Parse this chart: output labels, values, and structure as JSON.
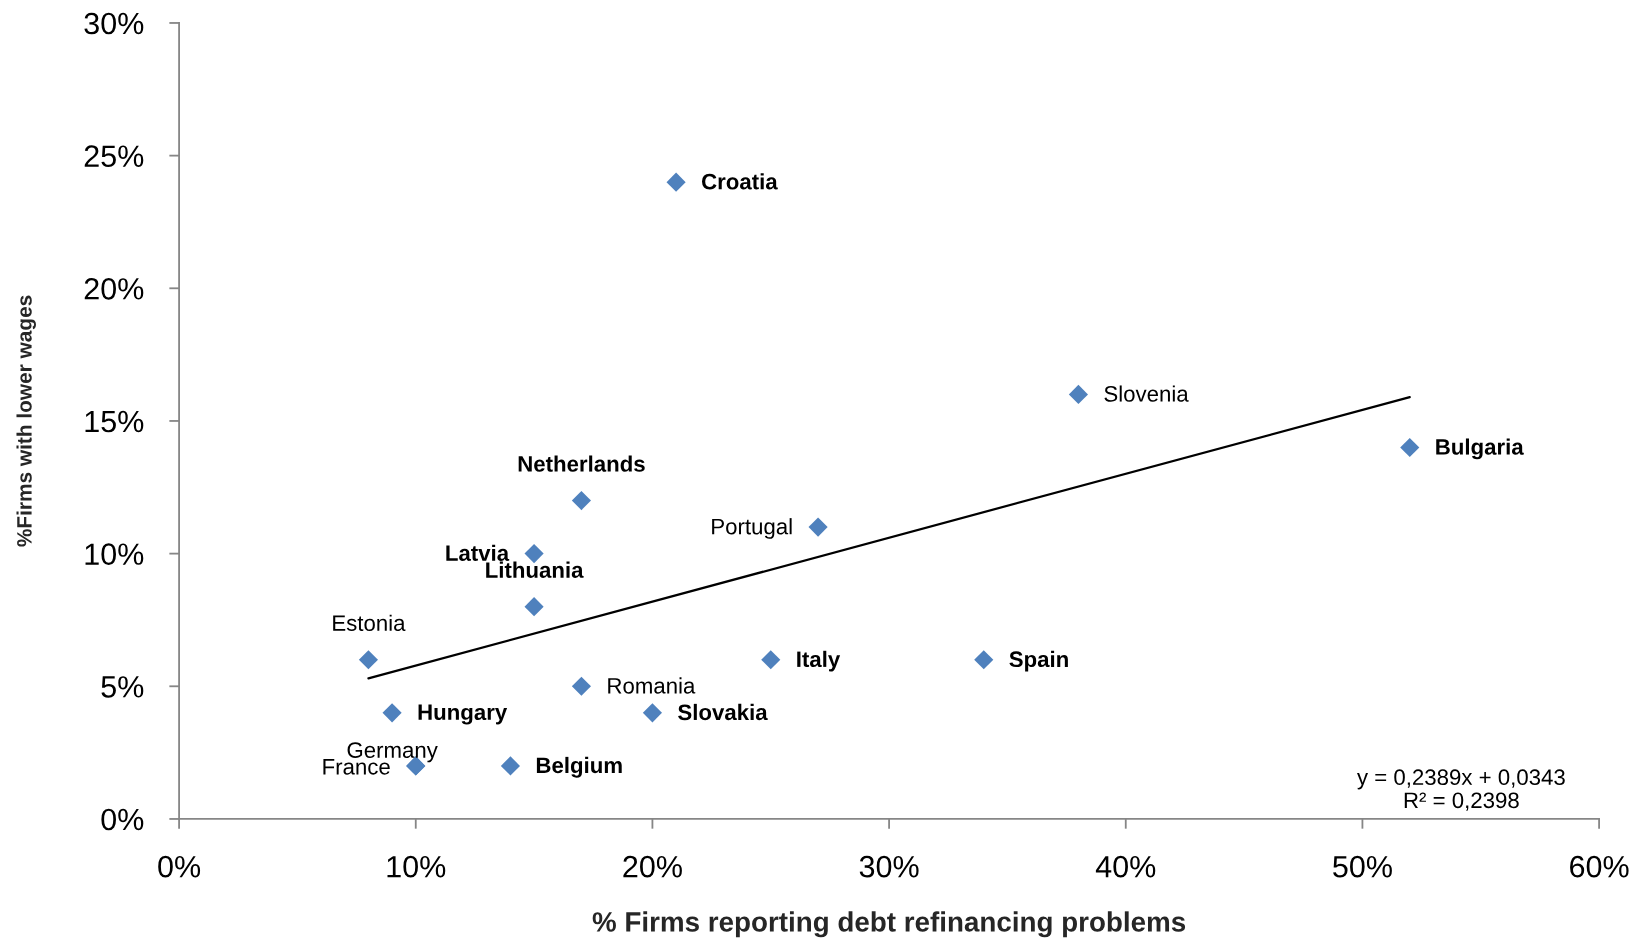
{
  "chart_data": {
    "type": "scatter",
    "xlabel": "% Firms reporting debt refinancing problems",
    "ylabel": "%Firms with lower wages",
    "series": [
      {
        "color": "#4f81bd",
        "marker": "diamond",
        "x": [
          21,
          38,
          52,
          17,
          27,
          15,
          15,
          8,
          25,
          34,
          17,
          9,
          20,
          10,
          10,
          14
        ],
        "values": [
          24,
          16,
          14,
          12,
          11,
          10,
          8,
          6,
          6,
          6,
          5,
          4,
          4,
          2,
          2,
          2
        ]
      },
      {
        "type": "line",
        "color": "#000000",
        "line_style": "solid",
        "x": [
          8,
          52
        ],
        "values": [
          5.3,
          15.9
        ]
      }
    ],
    "grid": false,
    "annotations": [
      {
        "text": "Croatia",
        "x": 21,
        "y": 24
      },
      {
        "text": "Slovenia",
        "x": 38,
        "y": 16
      },
      {
        "text": "Bulgaria",
        "x": 52,
        "y": 14
      },
      {
        "text": "Netherlands",
        "x": 17,
        "y": 12
      },
      {
        "text": "Portugal",
        "x": 27,
        "y": 11
      },
      {
        "text": "Latvia",
        "x": 15,
        "y": 10
      },
      {
        "text": "Lithuania",
        "x": 15,
        "y": 8
      },
      {
        "text": "Estonia",
        "x": 8,
        "y": 6
      },
      {
        "text": "Italy",
        "x": 25,
        "y": 6
      },
      {
        "text": "Spain",
        "x": 34,
        "y": 6
      },
      {
        "text": "Romania",
        "x": 17,
        "y": 5
      },
      {
        "text": "Hungary",
        "x": 9,
        "y": 4
      },
      {
        "text": "Slovakia",
        "x": 20,
        "y": 4
      },
      {
        "text": "Germany",
        "x": 10,
        "y": 2
      },
      {
        "text": "France",
        "x": 10,
        "y": 2
      },
      {
        "text": "Belgium",
        "x": 14,
        "y": 2
      },
      "y = 0,2389x + 0,0343\nR² = 0,2398"
    ],
    "xlim": [
      0,
      60
    ],
    "ylim": [
      0,
      30
    ],
    "xticks": [
      {
        "value": 0,
        "label": "0%"
      },
      {
        "value": 10,
        "label": "10%"
      },
      {
        "value": 20,
        "label": "20%"
      },
      {
        "value": 30,
        "label": "30%"
      },
      {
        "value": 40,
        "label": "40%"
      },
      {
        "value": 50,
        "label": "50%"
      },
      {
        "value": 60,
        "label": "60%"
      }
    ],
    "yticks": [
      {
        "value": 0,
        "label": "0%"
      },
      {
        "value": 5,
        "label": "5%"
      },
      {
        "value": 10,
        "label": "10%"
      },
      {
        "value": 15,
        "label": "15%"
      },
      {
        "value": 20,
        "label": "20%"
      },
      {
        "value": 25,
        "label": "25%"
      },
      {
        "value": 30,
        "label": "30%"
      }
    ]
  }
}
